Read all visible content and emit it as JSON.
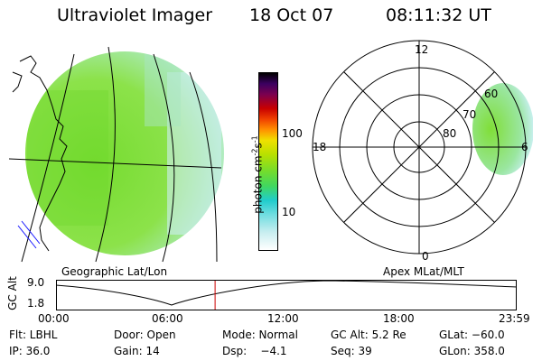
{
  "header": {
    "instrument": "Ultraviolet Imager",
    "date": "18 Oct 07",
    "time": "08:11:32 UT"
  },
  "colorbar": {
    "unit_label": "photon cm",
    "unit_exp1": "-2",
    "unit_mid": "s",
    "unit_exp2": "-1",
    "ticks": [
      "100",
      "10"
    ]
  },
  "panels": {
    "left_caption": "Geographic Lat/Lon",
    "right_caption": "Apex  MLat/MLT"
  },
  "polar": {
    "mlt_labels": [
      "12",
      "18",
      "6",
      "0"
    ],
    "lat_labels": [
      "60",
      "70",
      "80"
    ]
  },
  "altitude_plot": {
    "axis_label": "GC Alt",
    "y_ticks": [
      "9.0",
      "1.8"
    ],
    "x_ticks": [
      "00:00",
      "06:00",
      "12:00",
      "18:00",
      "23:59"
    ],
    "current_time_fraction": 0.345,
    "marker_color": "#cc0000"
  },
  "params": {
    "row1": [
      "Flt: LBHL",
      "Door: Open",
      "Mode: Normal",
      "GC Alt: 5.2 Re",
      "GLat: −60.0"
    ],
    "row2": [
      "IP: 36.0",
      "Gain: 14",
      "Dsp:    −4.1",
      "Seq: 39",
      "GLon: 358.0"
    ]
  },
  "colors": {
    "emission_green": "#7ee03a",
    "emission_cyan": "#bfeff0",
    "coast": "#000000",
    "blue_lines": "#1a1aff"
  }
}
